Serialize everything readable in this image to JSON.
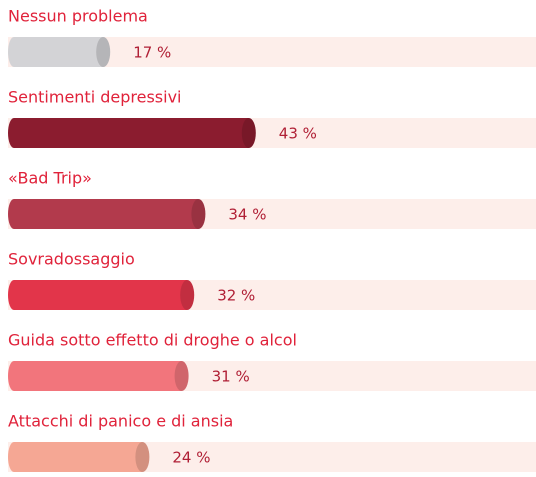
{
  "chart_data": {
    "type": "bar",
    "categories": [
      "Nessun problema",
      "Sentimenti depressivi",
      "«Bad Trip»",
      "Sovradossaggio",
      "Guida sotto effetto di droghe o alcol",
      "Attacchi di panico e di ansia"
    ],
    "values": [
      17,
      43,
      34,
      32,
      31,
      24
    ],
    "value_labels": [
      "17 %",
      "43 %",
      "34 %",
      "32 %",
      "31 %",
      "24 %"
    ],
    "colors": [
      "#d3d3d6",
      "#8b1c2f",
      "#b23a4c",
      "#e2354a",
      "#f2757c",
      "#f5a794"
    ]
  }
}
